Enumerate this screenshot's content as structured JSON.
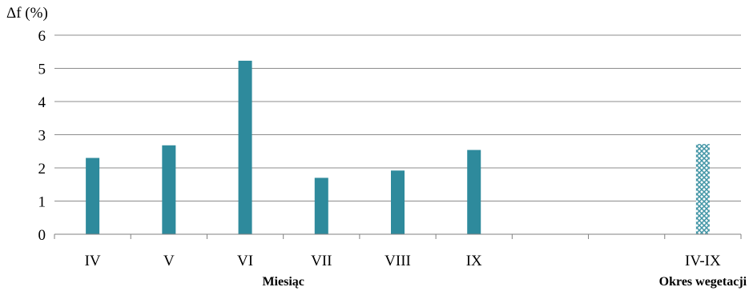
{
  "chart_data": {
    "type": "bar",
    "ylabel": "Δf (%)",
    "ylim": [
      0,
      6
    ],
    "yticks": [
      0,
      1,
      2,
      3,
      4,
      5,
      6
    ],
    "grid": true,
    "categories": [
      "IV",
      "V",
      "VI",
      "VII",
      "VIII",
      "IX",
      "",
      "",
      "IV-IX"
    ],
    "values": [
      2.3,
      2.68,
      5.23,
      1.7,
      1.92,
      2.54,
      null,
      null,
      2.72
    ],
    "patterned_categories": [
      "IV-IX"
    ],
    "group_labels": [
      {
        "text": "Miesiąc",
        "under": [
          "IV",
          "V",
          "VI",
          "VII",
          "VIII",
          "IX"
        ]
      },
      {
        "text": "Okres wegetacji",
        "under": [
          "IV-IX"
        ]
      }
    ],
    "colors": {
      "bar": "#2E8A9C",
      "pattern_line": "#2E8A9C",
      "grid": "#8C8C8C",
      "axis": "#808080"
    }
  }
}
